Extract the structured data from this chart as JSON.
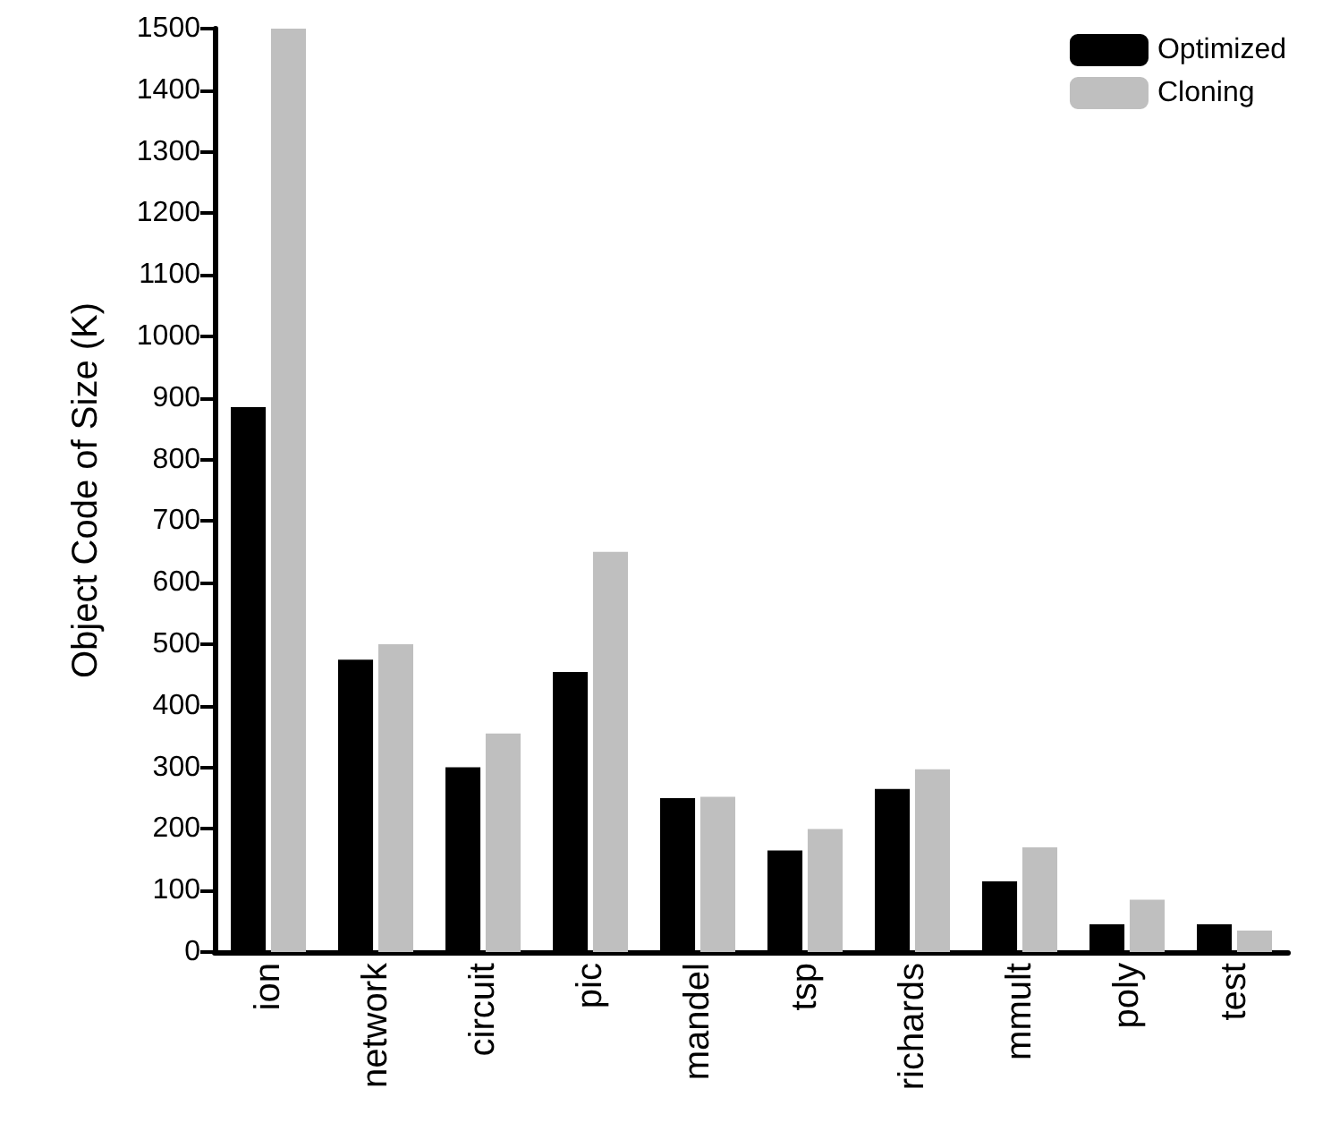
{
  "chart_data": {
    "type": "bar",
    "ylabel": "Object Code of Size (K)",
    "categories": [
      "ion",
      "network",
      "circuit",
      "pic",
      "mandel",
      "tsp",
      "richards",
      "mmult",
      "poly",
      "test"
    ],
    "series": [
      {
        "name": "Optimized",
        "color": "#000000",
        "values": [
          885,
          475,
          300,
          455,
          250,
          165,
          265,
          115,
          45,
          45
        ]
      },
      {
        "name": "Cloning",
        "color": "#bfbfbf",
        "values": [
          1500,
          500,
          355,
          650,
          252,
          200,
          297,
          170,
          85,
          35
        ]
      }
    ],
    "ylim": [
      0,
      1500
    ],
    "yticks": [
      0,
      100,
      200,
      300,
      400,
      500,
      600,
      700,
      800,
      900,
      1000,
      1100,
      1200,
      1300,
      1400,
      1500
    ],
    "grid": false,
    "legend": "top right"
  }
}
